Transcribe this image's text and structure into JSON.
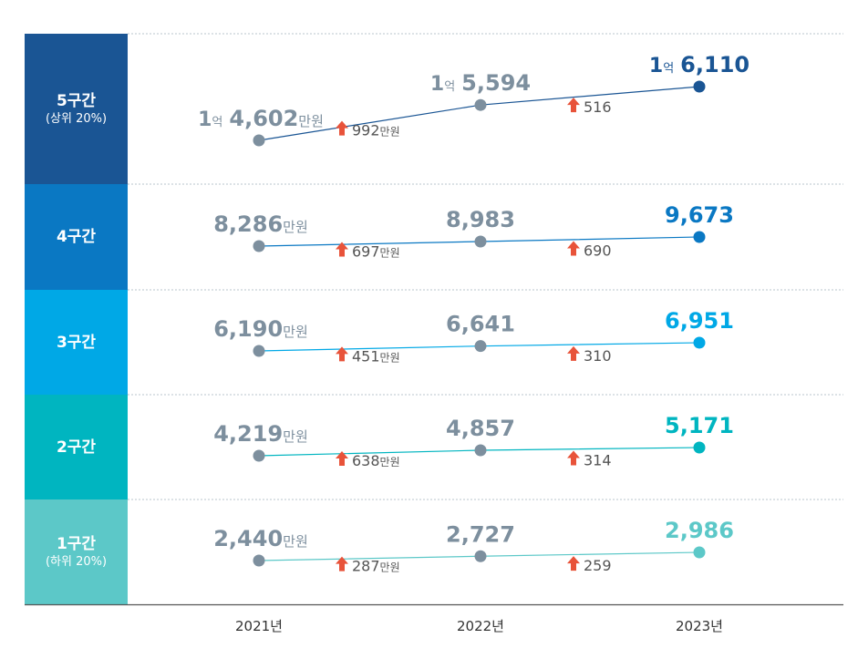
{
  "chart_data": {
    "type": "line",
    "title": "",
    "categories": [
      "2021년",
      "2022년",
      "2023년"
    ],
    "series": [
      {
        "name": "5구간",
        "subtitle": "(상위 20%)",
        "values": [
          14602,
          15594,
          16110
        ],
        "labels": [
          {
            "prefix": "1",
            "prefix_unit": "억",
            "main": "4,602",
            "unit": "만원"
          },
          {
            "prefix": "1",
            "prefix_unit": "억",
            "main": "5,594",
            "unit": ""
          },
          {
            "prefix": "1",
            "prefix_unit": "억",
            "main": "6,110",
            "unit": ""
          }
        ],
        "increases": [
          {
            "value": "992",
            "unit": "만원"
          },
          {
            "value": "516",
            "unit": ""
          }
        ],
        "band_color": "#1a5594",
        "end_color": "#1a5594"
      },
      {
        "name": "4구간",
        "subtitle": "",
        "values": [
          8286,
          8983,
          9673
        ],
        "labels": [
          {
            "prefix": "",
            "prefix_unit": "",
            "main": "8,286",
            "unit": "만원"
          },
          {
            "prefix": "",
            "prefix_unit": "",
            "main": "8,983",
            "unit": ""
          },
          {
            "prefix": "",
            "prefix_unit": "",
            "main": "9,673",
            "unit": ""
          }
        ],
        "increases": [
          {
            "value": "697",
            "unit": "만원"
          },
          {
            "value": "690",
            "unit": ""
          }
        ],
        "band_color": "#0a78c3",
        "end_color": "#0a78c3"
      },
      {
        "name": "3구간",
        "subtitle": "",
        "values": [
          6190,
          6641,
          6951
        ],
        "labels": [
          {
            "prefix": "",
            "prefix_unit": "",
            "main": "6,190",
            "unit": "만원"
          },
          {
            "prefix": "",
            "prefix_unit": "",
            "main": "6,641",
            "unit": ""
          },
          {
            "prefix": "",
            "prefix_unit": "",
            "main": "6,951",
            "unit": ""
          }
        ],
        "increases": [
          {
            "value": "451",
            "unit": "만원"
          },
          {
            "value": "310",
            "unit": ""
          }
        ],
        "band_color": "#00a8e6",
        "end_color": "#00a8e6"
      },
      {
        "name": "2구간",
        "subtitle": "",
        "values": [
          4219,
          4857,
          5171
        ],
        "labels": [
          {
            "prefix": "",
            "prefix_unit": "",
            "main": "4,219",
            "unit": "만원"
          },
          {
            "prefix": "",
            "prefix_unit": "",
            "main": "4,857",
            "unit": ""
          },
          {
            "prefix": "",
            "prefix_unit": "",
            "main": "5,171",
            "unit": ""
          }
        ],
        "increases": [
          {
            "value": "638",
            "unit": "만원"
          },
          {
            "value": "314",
            "unit": ""
          }
        ],
        "band_color": "#00b5c0",
        "end_color": "#00b5c0"
      },
      {
        "name": "1구간",
        "subtitle": "(하위 20%)",
        "values": [
          2440,
          2727,
          2986
        ],
        "labels": [
          {
            "prefix": "",
            "prefix_unit": "",
            "main": "2,440",
            "unit": "만원"
          },
          {
            "prefix": "",
            "prefix_unit": "",
            "main": "2,727",
            "unit": ""
          },
          {
            "prefix": "",
            "prefix_unit": "",
            "main": "2,986",
            "unit": ""
          }
        ],
        "increases": [
          {
            "value": "287",
            "unit": "만원"
          },
          {
            "value": "259",
            "unit": ""
          }
        ],
        "band_color": "#5cc8c8",
        "end_color": "#5cc8c8"
      }
    ],
    "colors": {
      "point": "#7d8f9e",
      "text": "#7d8f9e",
      "arrow": "#e8533a",
      "increase_text": "#555555"
    }
  }
}
